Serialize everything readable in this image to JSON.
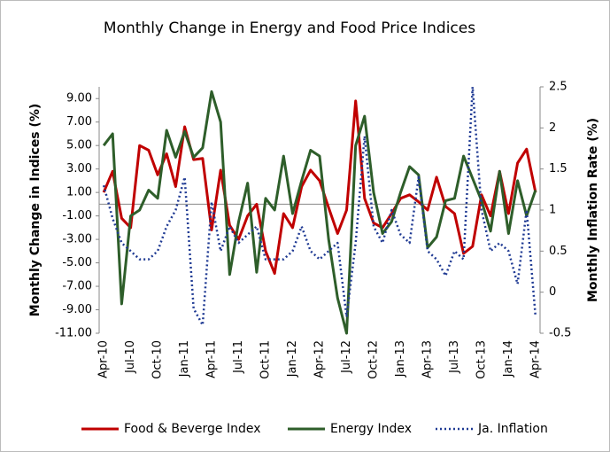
{
  "chart_data": {
    "type": "line",
    "title": "Monthly Change in Energy and Food Price Indices",
    "y_label": "Monthly  Change in Indices (%)",
    "y2_label": "Monthly Inflation Rate (%)",
    "categories": [
      "Apr-10",
      null,
      null,
      "Jul-10",
      null,
      null,
      "Oct-10",
      null,
      null,
      "Jan-11",
      null,
      null,
      "Apr-11",
      null,
      null,
      "Jul-11",
      null,
      null,
      "Oct-11",
      null,
      null,
      "Jan-12",
      null,
      null,
      "Apr-12",
      null,
      null,
      "Jul-12",
      null,
      null,
      "Oct-12",
      null,
      null,
      "Jan-13",
      null,
      null,
      "Apr-13",
      null,
      null,
      "Jul-13",
      null,
      null,
      "Oct-13",
      null,
      null,
      "Jan-14",
      null,
      null,
      "Apr-14"
    ],
    "series": [
      {
        "name": "Food & Beverge Index",
        "color": "#c00000",
        "values": [
          1.0,
          2.8,
          -1.2,
          -2.0,
          5.0,
          4.6,
          2.5,
          4.3,
          1.5,
          6.6,
          3.8,
          3.9,
          -2.2,
          2.9,
          -1.8,
          -3.0,
          -1.0,
          0.0,
          -4.0,
          -5.9,
          -0.8,
          -2.0,
          1.5,
          2.9,
          2.0,
          -0.3,
          -2.5,
          -0.5,
          8.8,
          0.5,
          -1.6,
          -2.0,
          -0.8,
          0.5,
          0.8,
          0.2,
          -0.5,
          2.3,
          -0.2,
          -0.8,
          -4.2,
          -3.6,
          0.8,
          -1.0,
          2.8,
          -0.8,
          3.5,
          4.7,
          1.0
        ]
      },
      {
        "name": "Energy Index",
        "color": "#2e5e2a",
        "values": [
          5.0,
          6.0,
          -8.5,
          -1.0,
          -0.5,
          1.2,
          0.5,
          6.3,
          4.0,
          6.2,
          4.0,
          4.8,
          9.6,
          7.0,
          -6.0,
          -1.5,
          1.8,
          -5.8,
          0.5,
          -0.5,
          4.1,
          -0.8,
          2.0,
          4.6,
          4.1,
          -3.0,
          -8.0,
          -11.0,
          5.0,
          7.5,
          1.0,
          -2.5,
          -1.5,
          1.0,
          3.2,
          2.5,
          -3.7,
          -2.8,
          0.3,
          0.5,
          4.1,
          2.2,
          0.3,
          -2.3,
          2.8,
          -2.5,
          2.0,
          -1.0,
          1.2
        ]
      },
      {
        "name": "Ja. Inflation",
        "color": "#1f3a93",
        "axis": "y2",
        "dashed": true,
        "values": [
          1.3,
          0.9,
          0.6,
          0.5,
          0.4,
          0.4,
          0.5,
          0.8,
          1.0,
          1.4,
          -0.2,
          -0.4,
          1.1,
          0.5,
          0.8,
          0.6,
          0.7,
          0.8,
          0.4,
          0.4,
          0.4,
          0.5,
          0.8,
          0.5,
          0.4,
          0.5,
          0.6,
          -0.3,
          0.6,
          1.9,
          0.8,
          0.6,
          1.0,
          0.7,
          0.6,
          1.4,
          0.5,
          0.4,
          0.2,
          0.5,
          0.4,
          2.5,
          1.0,
          0.5,
          0.6,
          0.5,
          0.1,
          1.0,
          -0.3
        ]
      }
    ],
    "ylim": [
      -11,
      10
    ],
    "yticks": [
      {
        "value": -11,
        "label": "-11.00"
      },
      {
        "value": -9,
        "label": "-9.00"
      },
      {
        "value": -7,
        "label": "-7.00"
      },
      {
        "value": -5,
        "label": "-5.00"
      },
      {
        "value": -3,
        "label": "-3.00"
      },
      {
        "value": -1,
        "label": "-1.00"
      },
      {
        "value": 1,
        "label": "1.00"
      },
      {
        "value": 3,
        "label": "3.00"
      },
      {
        "value": 5,
        "label": "5.00"
      },
      {
        "value": 7,
        "label": "7.00"
      },
      {
        "value": 9,
        "label": "9.00"
      }
    ],
    "y2lim": [
      -0.5,
      2.5
    ],
    "y2ticks": [
      -0.5,
      0,
      0.5,
      1,
      1.5,
      2,
      2.5
    ],
    "legend": "bottom"
  }
}
